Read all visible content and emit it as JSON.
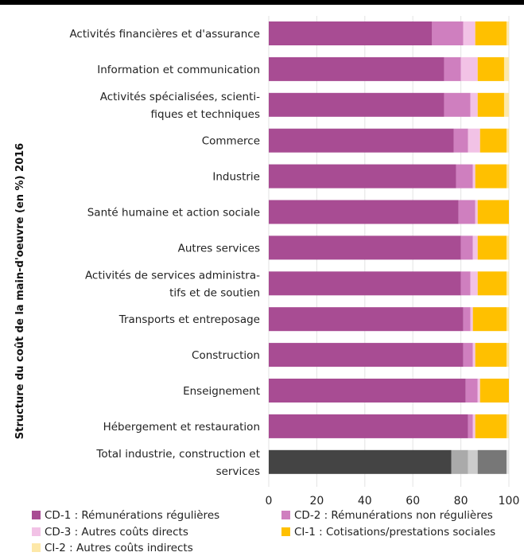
{
  "chart_data": {
    "type": "bar",
    "orientation": "horizontal",
    "stacked": true,
    "ylabel": "Structure du coût de la main-d'oeuvre (en %) 2016",
    "xlim": [
      0,
      100
    ],
    "xticks": [
      0,
      20,
      40,
      60,
      80,
      100
    ],
    "grid": true,
    "legend_position": "bottom",
    "categories": [
      [
        "Activités financières et d'assurance"
      ],
      [
        "Information et communication"
      ],
      [
        "Activités spécialisées, scienti-",
        "fiques et techniques"
      ],
      [
        "Commerce"
      ],
      [
        "Industrie"
      ],
      [
        "Santé humaine et action sociale"
      ],
      [
        "Autres services"
      ],
      [
        "Activités de services administra-",
        "tifs et de soutien"
      ],
      [
        "Transports et entreposage"
      ],
      [
        "Construction"
      ],
      [
        "Enseignement"
      ],
      [
        "Hébergement et restauration"
      ],
      [
        "Total industrie, construction et",
        "services"
      ]
    ],
    "series": [
      {
        "name": "CD-1 : Rémunérations régulières",
        "color": "#a84c93",
        "values": [
          68,
          73,
          73,
          77,
          78,
          79,
          80,
          80,
          81,
          81,
          82,
          83,
          76
        ]
      },
      {
        "name": "CD-2 : Rémunérations non régulières",
        "color": "#cf7fbf",
        "values": [
          13,
          7,
          11,
          6,
          7,
          7,
          5,
          4,
          3,
          4,
          5,
          2,
          7
        ]
      },
      {
        "name": "CD-3 : Autres coûts directs",
        "color": "#f2c2e6",
        "values": [
          5,
          7,
          3,
          5,
          1,
          1,
          2,
          3,
          1,
          1,
          1,
          1,
          4
        ]
      },
      {
        "name": "CI-1 : Cotisations/prestations sociales",
        "color": "#ffc000",
        "values": [
          13,
          11,
          11,
          11,
          13,
          13,
          12,
          12,
          14,
          13,
          12,
          13,
          12
        ]
      },
      {
        "name": "CI-2 : Autres coûts indirects",
        "color": "#fde8a8",
        "values": [
          1,
          2,
          2,
          1,
          1,
          0,
          1,
          1,
          1,
          1,
          0,
          1,
          1
        ]
      }
    ],
    "total_row_colors": [
      "#444444",
      "#aaaaaa",
      "#cccccc",
      "#777777",
      "#e0e0e0"
    ]
  }
}
